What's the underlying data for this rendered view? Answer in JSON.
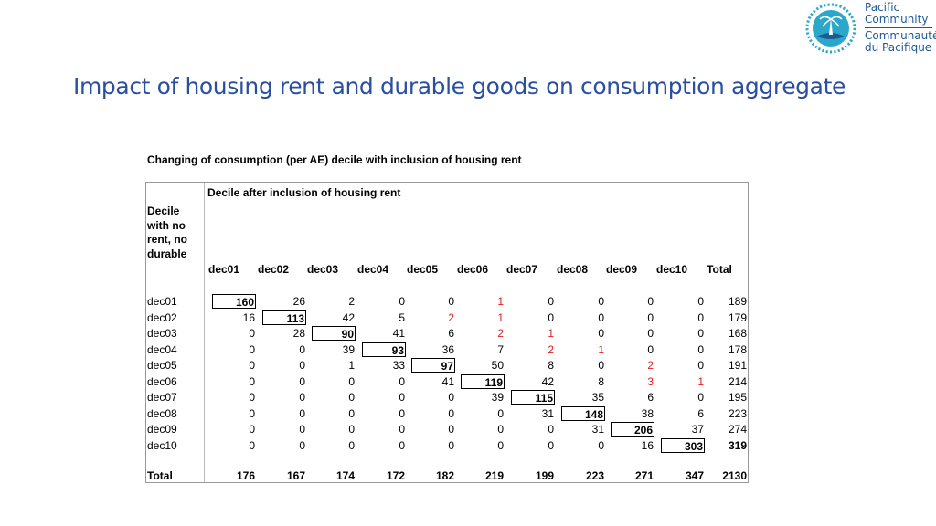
{
  "title": "Impact of housing rent and durable goods on consumption aggregate",
  "logo": {
    "line1": "Pacific",
    "line2": "Community",
    "line3": "Communauté",
    "line4": "du Pacifique",
    "color": "#1e5a96"
  },
  "caption": "Changing of consumption (per AE) decile with inclusion of housing rent",
  "table": {
    "column_group_header": "Decile after inclusion of housing rent",
    "row_header": [
      "Decile",
      "with no",
      "rent, no",
      "durable"
    ],
    "columns": [
      "dec01",
      "dec02",
      "dec03",
      "dec04",
      "dec05",
      "dec06",
      "dec07",
      "dec08",
      "dec09",
      "dec10",
      "Total"
    ],
    "rows": [
      {
        "label": "dec01",
        "values": [
          "160",
          "26",
          "2",
          "0",
          "0",
          "1",
          "0",
          "0",
          "0",
          "0",
          "189"
        ]
      },
      {
        "label": "dec02",
        "values": [
          "16",
          "113",
          "42",
          "5",
          "2",
          "1",
          "0",
          "0",
          "0",
          "0",
          "179"
        ]
      },
      {
        "label": "dec03",
        "values": [
          "0",
          "28",
          "90",
          "41",
          "6",
          "2",
          "1",
          "0",
          "0",
          "0",
          "168"
        ]
      },
      {
        "label": "dec04",
        "values": [
          "0",
          "0",
          "39",
          "93",
          "36",
          "7",
          "2",
          "1",
          "0",
          "0",
          "178"
        ]
      },
      {
        "label": "dec05",
        "values": [
          "0",
          "0",
          "1",
          "33",
          "97",
          "50",
          "8",
          "0",
          "2",
          "0",
          "191"
        ]
      },
      {
        "label": "dec06",
        "values": [
          "0",
          "0",
          "0",
          "0",
          "41",
          "119",
          "42",
          "8",
          "3",
          "1",
          "214"
        ]
      },
      {
        "label": "dec07",
        "values": [
          "0",
          "0",
          "0",
          "0",
          "0",
          "39",
          "115",
          "35",
          "6",
          "0",
          "195"
        ]
      },
      {
        "label": "dec08",
        "values": [
          "0",
          "0",
          "0",
          "0",
          "0",
          "0",
          "31",
          "148",
          "38",
          "6",
          "223"
        ]
      },
      {
        "label": "dec09",
        "values": [
          "0",
          "0",
          "0",
          "0",
          "0",
          "0",
          "0",
          "31",
          "206",
          "37",
          "274"
        ]
      },
      {
        "label": "dec10",
        "values": [
          "0",
          "0",
          "0",
          "0",
          "0",
          "0",
          "0",
          "0",
          "16",
          "303",
          "319"
        ]
      }
    ],
    "total_row": {
      "label": "Total",
      "values": [
        "176",
        "167",
        "174",
        "172",
        "182",
        "219",
        "199",
        "223",
        "271",
        "347",
        "2130"
      ]
    },
    "red_cells": [
      [
        0,
        5
      ],
      [
        1,
        4
      ],
      [
        1,
        5
      ],
      [
        2,
        5
      ],
      [
        2,
        6
      ],
      [
        3,
        6
      ],
      [
        3,
        7
      ],
      [
        4,
        8
      ],
      [
        5,
        8
      ],
      [
        5,
        9
      ]
    ],
    "red_color": "#e02020"
  }
}
